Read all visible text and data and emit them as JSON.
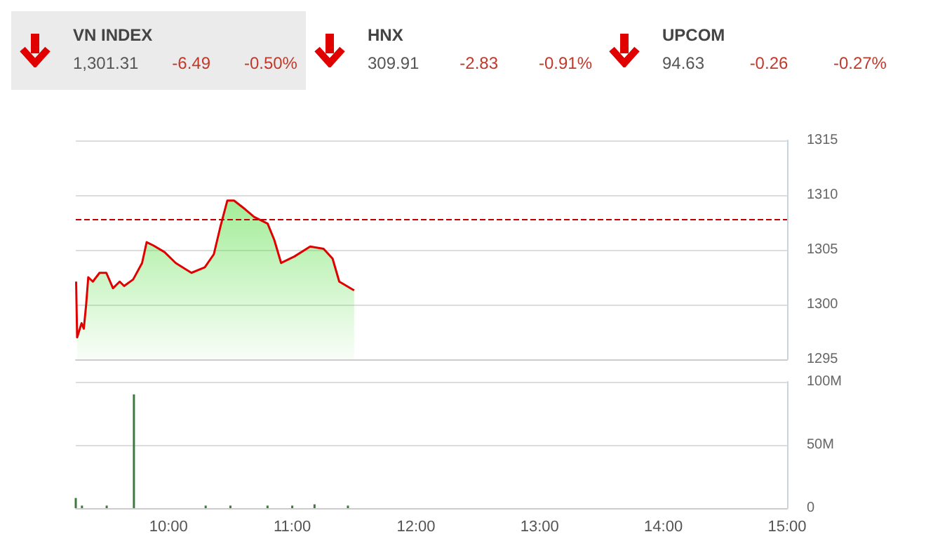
{
  "chart_data": [
    {
      "type": "other",
      "annotations": [
        "VN INDEX",
        "1,301.31",
        "-6.49",
        "-0.50%",
        "HNX",
        "309.91",
        "-2.83",
        "-0.91%",
        "UPCOM",
        "94.63",
        "-0.26",
        "-0.27%"
      ]
    },
    {
      "type": "area",
      "x": [
        9.253,
        9.261,
        9.297,
        9.315,
        9.334,
        9.351,
        9.388,
        9.442,
        9.497,
        9.551,
        9.605,
        9.641,
        9.714,
        9.786,
        9.823,
        9.877,
        9.967,
        10.058,
        10.185,
        10.293,
        10.366,
        10.421,
        10.475,
        10.529,
        10.62,
        10.692,
        10.801,
        10.855,
        10.91,
        11.018,
        11.145,
        11.253,
        11.326,
        11.38,
        11.5
      ],
      "series": [
        {
          "color": "#e00000",
          "values": [
            1302.1,
            1297.0,
            1298.3,
            1297.8,
            1300.0,
            1302.5,
            1302.1,
            1302.9,
            1302.9,
            1301.5,
            1302.1,
            1301.7,
            1302.3,
            1303.8,
            1305.7,
            1305.4,
            1304.8,
            1303.8,
            1302.9,
            1303.4,
            1304.6,
            1307.2,
            1309.5,
            1309.5,
            1308.7,
            1308.0,
            1307.4,
            1305.9,
            1303.8,
            1304.4,
            1305.3,
            1305.1,
            1304.2,
            1302.1,
            1301.3
          ]
        }
      ],
      "xlim": [
        9.25,
        15
      ],
      "ylim": [
        1295,
        1315
      ],
      "yticks": [
        1295,
        1300,
        1305,
        1310,
        1315
      ],
      "tick_labels": "y",
      "grid": "y",
      "ref_lines": [
        {
          "axis": "y",
          "value": 1307.8,
          "color": "#c00000",
          "line_style": "dashed"
        }
      ]
    },
    {
      "type": "bar",
      "x": [
        9.25,
        9.3,
        9.5,
        9.72,
        10.3,
        10.5,
        10.8,
        11.0,
        11.18,
        11.45
      ],
      "series": [
        {
          "color": "#3d7a3d",
          "values": [
            8,
            2,
            2,
            90,
            2,
            2,
            2,
            2,
            3,
            2
          ]
        }
      ],
      "xlim": [
        9.25,
        15
      ],
      "xticks": [
        {
          "value": 10,
          "label": "10:00"
        },
        {
          "value": 11,
          "label": "11:00"
        },
        {
          "value": 12,
          "label": "12:00"
        },
        {
          "value": 13,
          "label": "13:00"
        },
        {
          "value": 14,
          "label": "14:00"
        },
        {
          "value": 15,
          "label": "15:00"
        }
      ],
      "ylim": [
        0,
        100
      ],
      "yticks": [
        0,
        {
          "value": 50,
          "label": "50M"
        },
        {
          "value": 100,
          "label": "100M"
        }
      ],
      "grid": "y"
    }
  ]
}
